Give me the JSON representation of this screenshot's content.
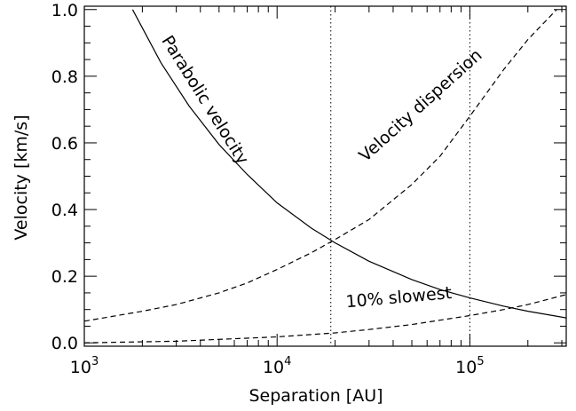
{
  "chart_data": {
    "type": "line",
    "xlabel": "Separation [AU]",
    "ylabel": "Velocity [km/s]",
    "x_scale": "log",
    "xlim": [
      1000,
      316228
    ],
    "ylim": [
      -0.01,
      1.01
    ],
    "grid": false,
    "x_ticks": [
      {
        "base": "10",
        "exp": "3",
        "value": 1000
      },
      {
        "base": "10",
        "exp": "4",
        "value": 10000
      },
      {
        "base": "10",
        "exp": "5",
        "value": 100000
      }
    ],
    "y_ticks": [
      {
        "label": "0.0",
        "value": 0.0
      },
      {
        "label": "0.2",
        "value": 0.2
      },
      {
        "label": "0.4",
        "value": 0.4
      },
      {
        "label": "0.6",
        "value": 0.6
      },
      {
        "label": "0.8",
        "value": 0.8
      },
      {
        "label": "1.0",
        "value": 1.0
      }
    ],
    "series": [
      {
        "name": "Parabolic velocity",
        "line": "solid",
        "x": [
          1780,
          2500,
          3500,
          5000,
          7000,
          10000,
          15000,
          20000,
          30000,
          50000,
          70000,
          100000,
          150000,
          200000,
          316228
        ],
        "y": [
          1.0,
          0.84,
          0.71,
          0.595,
          0.505,
          0.42,
          0.345,
          0.3,
          0.245,
          0.19,
          0.16,
          0.135,
          0.11,
          0.095,
          0.075
        ]
      },
      {
        "name": "Velocity dispersion",
        "line": "dashed",
        "x": [
          1000,
          2000,
          3000,
          5000,
          7000,
          10000,
          15000,
          20000,
          30000,
          50000,
          70000,
          100000,
          150000,
          200000,
          282000
        ],
        "y": [
          0.065,
          0.095,
          0.115,
          0.15,
          0.18,
          0.22,
          0.27,
          0.31,
          0.37,
          0.475,
          0.56,
          0.68,
          0.82,
          0.91,
          1.0
        ]
      },
      {
        "name": "10% slowest",
        "line": "dashed",
        "x": [
          1000,
          3000,
          10000,
          20000,
          30000,
          50000,
          70000,
          100000,
          150000,
          200000,
          316228
        ],
        "y": [
          0.0,
          0.005,
          0.018,
          0.03,
          0.04,
          0.055,
          0.068,
          0.082,
          0.1,
          0.115,
          0.145
        ]
      }
    ],
    "vlines": [
      {
        "x": 19000,
        "style": "dotted"
      },
      {
        "x": 100000,
        "style": "dotted"
      }
    ],
    "annotations": [
      {
        "text": "Parabolic velocity",
        "x": 4000,
        "y": 0.72,
        "rotation_deg": 58
      },
      {
        "text": "Velocity dispersion",
        "x": 58000,
        "y": 0.7,
        "rotation_deg": -42
      },
      {
        "text": "10% slowest",
        "x": 43000,
        "y": 0.12,
        "rotation_deg": -5
      }
    ]
  }
}
